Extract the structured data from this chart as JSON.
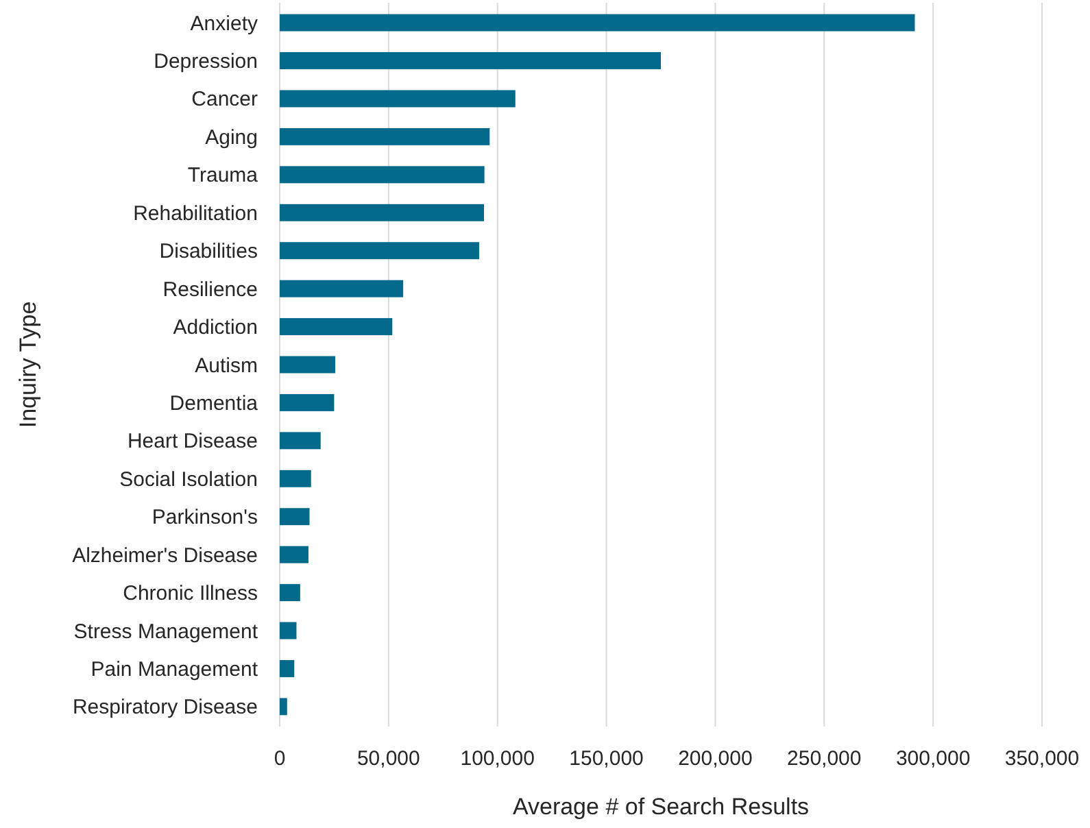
{
  "chart_data": {
    "type": "bar",
    "orientation": "horizontal",
    "xlabel": "Average # of Search Results",
    "ylabel": "Inquiry Type",
    "categories": [
      "Anxiety",
      "Depression",
      "Cancer",
      "Aging",
      "Trauma",
      "Rehabilitation",
      "Disabilities",
      "Resilience",
      "Addiction",
      "Autism",
      "Dementia",
      "Heart Disease",
      "Social Isolation",
      "Parkinson's",
      "Alzheimer's Disease",
      "Chronic Illness",
      "Stress Management",
      "Pain Management",
      "Respiratory Disease"
    ],
    "values": [
      291600,
      175000,
      108200,
      96400,
      94000,
      93800,
      91600,
      56700,
      51700,
      25500,
      25000,
      18800,
      14400,
      13700,
      13200,
      9400,
      7700,
      6700,
      3400
    ],
    "color": "#046a8c",
    "xlim": [
      0,
      350000
    ],
    "xticks": [
      {
        "value": 0,
        "label": "0"
      },
      {
        "value": 50000,
        "label": "50,000"
      },
      {
        "value": 100000,
        "label": "100,000"
      },
      {
        "value": 150000,
        "label": "150,000"
      },
      {
        "value": 200000,
        "label": "200,000"
      },
      {
        "value": 250000,
        "label": "250,000"
      },
      {
        "value": 300000,
        "label": "300,000"
      },
      {
        "value": 350000,
        "label": "350,000"
      }
    ],
    "grid": "x"
  }
}
